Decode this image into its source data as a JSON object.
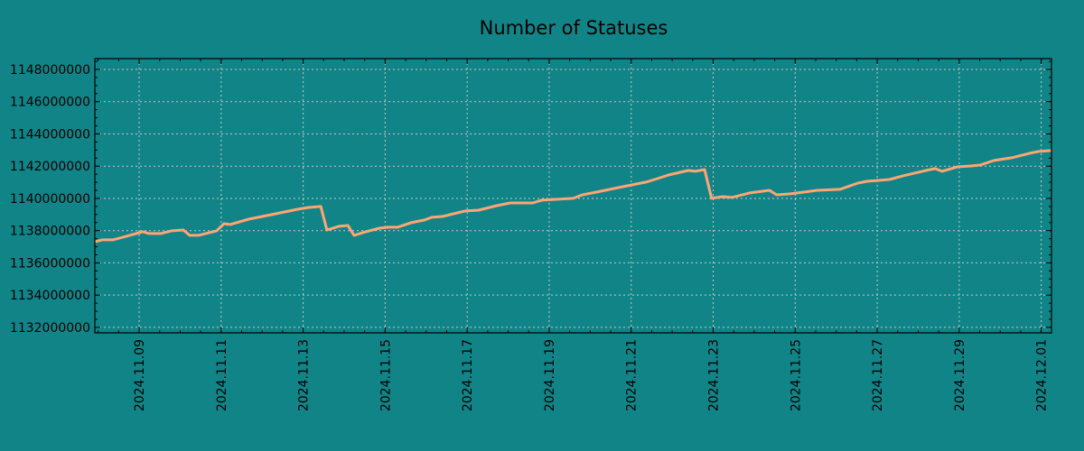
{
  "chart_data": {
    "type": "line",
    "title": "Number of Statuses",
    "xlabel": "",
    "ylabel": "",
    "x_unit": "days since 2024.11.09",
    "xlim": [
      -1.08,
      22.25
    ],
    "ylim": [
      1131660000,
      1148670000
    ],
    "grid": true,
    "colors": {
      "background": "#118488",
      "line": "#FFA573",
      "grid": "#C8C8C8",
      "axis": "#000000"
    },
    "y_ticks": [
      1132000000,
      1134000000,
      1136000000,
      1138000000,
      1140000000,
      1142000000,
      1144000000,
      1146000000,
      1148000000
    ],
    "y_tick_labels": [
      "1132000000",
      "1134000000",
      "1136000000",
      "1138000000",
      "1140000000",
      "1142000000",
      "1144000000",
      "1146000000",
      "1148000000"
    ],
    "x_ticks": [
      0,
      2,
      4,
      6,
      8,
      10,
      12,
      14,
      16,
      18,
      20,
      22
    ],
    "x_tick_labels": [
      "2024.11.09",
      "2024.11.11",
      "2024.11.13",
      "2024.11.15",
      "2024.11.17",
      "2024.11.19",
      "2024.11.21",
      "2024.11.23",
      "2024.11.25",
      "2024.11.27",
      "2024.11.29",
      "2024.12.01"
    ],
    "series": [
      {
        "name": "Number of Statuses",
        "x": [
          -1.08,
          -0.9,
          -0.64,
          -0.31,
          0,
          0.09,
          0.24,
          0.53,
          0.79,
          1.08,
          1.23,
          1.45,
          1.89,
          2.07,
          2.22,
          2.67,
          3.22,
          3.88,
          4.14,
          4.43,
          4.58,
          4.87,
          5.09,
          5.24,
          5.53,
          5.86,
          6.08,
          6.3,
          6.63,
          6.96,
          7.14,
          7.4,
          7.95,
          8.28,
          8.72,
          9.05,
          9.6,
          9.82,
          10.59,
          10.81,
          11.15,
          11.59,
          12.03,
          12.36,
          12.64,
          12.91,
          13.39,
          13.57,
          13.79,
          13.96,
          14.23,
          14.45,
          14.89,
          15.37,
          15.55,
          15.88,
          16.21,
          16.54,
          17.09,
          17.53,
          17.75,
          18.3,
          18.63,
          19.19,
          19.41,
          19.58,
          19.96,
          20.29,
          20.51,
          20.84,
          21.28,
          21.72,
          21.94,
          22.25
        ],
        "y": [
          1137310000,
          1137430000,
          1137430000,
          1137650000,
          1137870000,
          1137930000,
          1137820000,
          1137820000,
          1137990000,
          1138040000,
          1137710000,
          1137710000,
          1137990000,
          1138430000,
          1138380000,
          1138710000,
          1138990000,
          1139330000,
          1139440000,
          1139500000,
          1138040000,
          1138270000,
          1138320000,
          1137710000,
          1137930000,
          1138150000,
          1138210000,
          1138210000,
          1138490000,
          1138660000,
          1138830000,
          1138880000,
          1139220000,
          1139270000,
          1139550000,
          1139720000,
          1139720000,
          1139890000,
          1140000000,
          1140220000,
          1140390000,
          1140620000,
          1140840000,
          1141010000,
          1141230000,
          1141450000,
          1141730000,
          1141680000,
          1141790000,
          1140000000,
          1140110000,
          1140060000,
          1140340000,
          1140500000,
          1140220000,
          1140280000,
          1140390000,
          1140500000,
          1140560000,
          1140950000,
          1141060000,
          1141170000,
          1141400000,
          1141730000,
          1141850000,
          1141680000,
          1141960000,
          1142010000,
          1142070000,
          1142350000,
          1142520000,
          1142800000,
          1142910000,
          1142970000
        ]
      }
    ]
  }
}
